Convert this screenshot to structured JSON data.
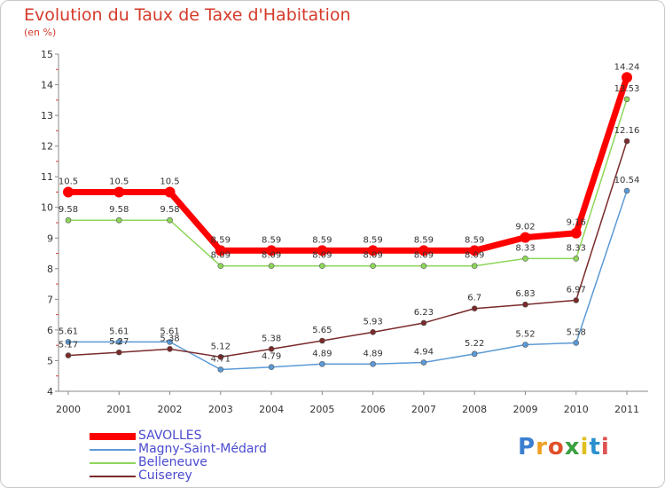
{
  "title": "Evolution du Taux de Taxe d'Habitation",
  "unit": "(en %)",
  "brand": {
    "letters": [
      "P",
      "r",
      "o",
      "x",
      "i",
      "t",
      "i"
    ],
    "colors": [
      "#3a7fd0",
      "#f0a020",
      "#e0502a",
      "#3aa040",
      "#e0c020",
      "#2a90d0",
      "#e05050"
    ]
  },
  "chart_data": {
    "type": "line",
    "x": [
      "2000",
      "2001",
      "2002",
      "2003",
      "2004",
      "2005",
      "2006",
      "2007",
      "2008",
      "2009",
      "2010",
      "2011"
    ],
    "ylim": [
      4,
      15
    ],
    "yticks": [
      4,
      5,
      6,
      7,
      8,
      9,
      10,
      11,
      12,
      13,
      14,
      15
    ],
    "grid": false,
    "legend": "bottom-left",
    "series": [
      {
        "name": "Magny-Saint-Médard",
        "color": "#5b9ad6",
        "values": [
          5.61,
          5.61,
          5.61,
          4.71,
          4.79,
          4.89,
          4.89,
          4.94,
          5.22,
          5.52,
          5.58,
          10.54
        ]
      },
      {
        "name": "Belleneuve",
        "color": "#8ed65a",
        "values": [
          9.58,
          9.58,
          9.58,
          8.09,
          8.09,
          8.09,
          8.09,
          8.09,
          8.09,
          8.33,
          8.33,
          13.53
        ]
      },
      {
        "name": "Cuiserey",
        "color": "#7a2a2a",
        "values": [
          5.17,
          5.27,
          5.38,
          5.12,
          5.38,
          5.65,
          5.93,
          6.23,
          6.7,
          6.83,
          6.97,
          12.16
        ]
      },
      {
        "name": "SAVOLLES",
        "color": "#ff0000",
        "values": [
          10.5,
          10.5,
          10.5,
          8.59,
          8.59,
          8.59,
          8.59,
          8.59,
          8.59,
          9.02,
          9.16,
          14.24
        ]
      }
    ],
    "labels": {
      "Magny-Saint-Médard": [
        "5.61",
        "5.61",
        "5.61",
        "4.71",
        "4.79",
        "4.89",
        "4.89",
        "4.94",
        "5.22",
        "5.52",
        "5.58",
        "10.54"
      ],
      "Belleneuve": [
        "9.58",
        "9.58",
        "9.58",
        "8.09",
        "8.09",
        "8.09",
        "8.09",
        "8.09",
        "8.09",
        "8.33",
        "8.33",
        "13.53"
      ],
      "Cuiserey": [
        "5.17",
        "5.27",
        "5.38",
        "5.12",
        "5.38",
        "5.65",
        "5.93",
        "6.23",
        "6.7",
        "6.83",
        "6.97",
        "12.16"
      ],
      "SAVOLLES": [
        "10.5",
        "10.5",
        "10.5",
        "8.59",
        "8.59",
        "8.59",
        "8.59",
        "8.59",
        "8.59",
        "9.02",
        "9.16",
        "14.24"
      ]
    }
  },
  "legend_items": [
    {
      "name": "SAVOLLES",
      "color": "#ff0000"
    },
    {
      "name": "Magny-Saint-Médard",
      "color": "#5b9ad6"
    },
    {
      "name": "Belleneuve",
      "color": "#8ed65a"
    },
    {
      "name": "Cuiserey",
      "color": "#7a2a2a"
    }
  ]
}
